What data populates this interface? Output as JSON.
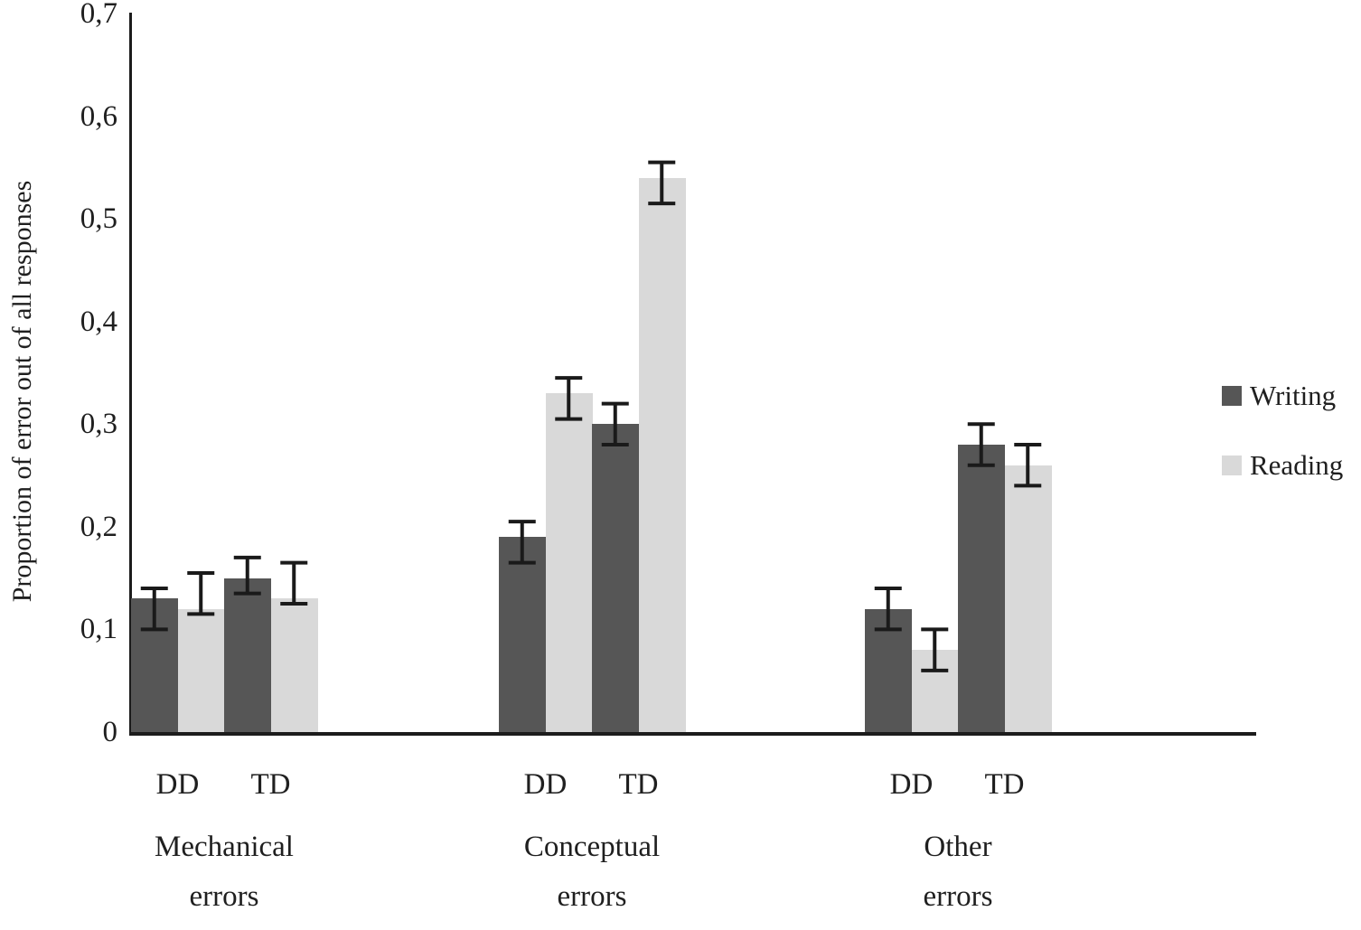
{
  "chart_data": {
    "type": "bar",
    "title": "",
    "ylabel": "Proportion of error out of all responses",
    "xlabel": "",
    "ylim": [
      0,
      0.7
    ],
    "ytick_step": 0.1,
    "decimal_separator": ",",
    "yticks": [
      "0",
      "0,1",
      "0,2",
      "0,3",
      "0,4",
      "0,5",
      "0,6",
      "0,7"
    ],
    "grid": false,
    "error_bars": true,
    "legend": {
      "position": "right",
      "entries": [
        {
          "label": "Writing",
          "color": "#565656"
        },
        {
          "label": "Reading",
          "color": "#d9d9d9"
        }
      ]
    },
    "series_names": [
      "Writing",
      "Reading"
    ],
    "groups": [
      {
        "label_lines": [
          "Mechanical",
          "errors"
        ],
        "subgroups": [
          {
            "label": "DD",
            "bars": [
              {
                "series": "Writing",
                "value": 0.13,
                "err_lo": 0.1,
                "err_hi": 0.14
              },
              {
                "series": "Reading",
                "value": 0.12,
                "err_lo": 0.115,
                "err_hi": 0.155
              }
            ]
          },
          {
            "label": "TD",
            "bars": [
              {
                "series": "Writing",
                "value": 0.15,
                "err_lo": 0.135,
                "err_hi": 0.17
              },
              {
                "series": "Reading",
                "value": 0.13,
                "err_lo": 0.125,
                "err_hi": 0.165
              }
            ]
          }
        ]
      },
      {
        "label_lines": [
          "Conceptual",
          "errors"
        ],
        "subgroups": [
          {
            "label": "DD",
            "bars": [
              {
                "series": "Writing",
                "value": 0.19,
                "err_lo": 0.165,
                "err_hi": 0.205
              },
              {
                "series": "Reading",
                "value": 0.33,
                "err_lo": 0.305,
                "err_hi": 0.345
              }
            ]
          },
          {
            "label": "TD",
            "bars": [
              {
                "series": "Writing",
                "value": 0.3,
                "err_lo": 0.28,
                "err_hi": 0.32
              },
              {
                "series": "Reading",
                "value": 0.54,
                "err_lo": 0.515,
                "err_hi": 0.555
              }
            ]
          }
        ]
      },
      {
        "label_lines": [
          "Other",
          "errors"
        ],
        "subgroups": [
          {
            "label": "DD",
            "bars": [
              {
                "series": "Writing",
                "value": 0.12,
                "err_lo": 0.1,
                "err_hi": 0.14
              },
              {
                "series": "Reading",
                "value": 0.08,
                "err_lo": 0.06,
                "err_hi": 0.1
              }
            ]
          },
          {
            "label": "TD",
            "bars": [
              {
                "series": "Writing",
                "value": 0.28,
                "err_lo": 0.26,
                "err_hi": 0.3
              },
              {
                "series": "Reading",
                "value": 0.26,
                "err_lo": 0.24,
                "err_hi": 0.28
              }
            ]
          }
        ]
      }
    ],
    "colors": {
      "axis": "#1c1c1c",
      "error_bar": "#1a1a1a",
      "text": "#1f1f1f",
      "background": "#ffffff"
    }
  }
}
